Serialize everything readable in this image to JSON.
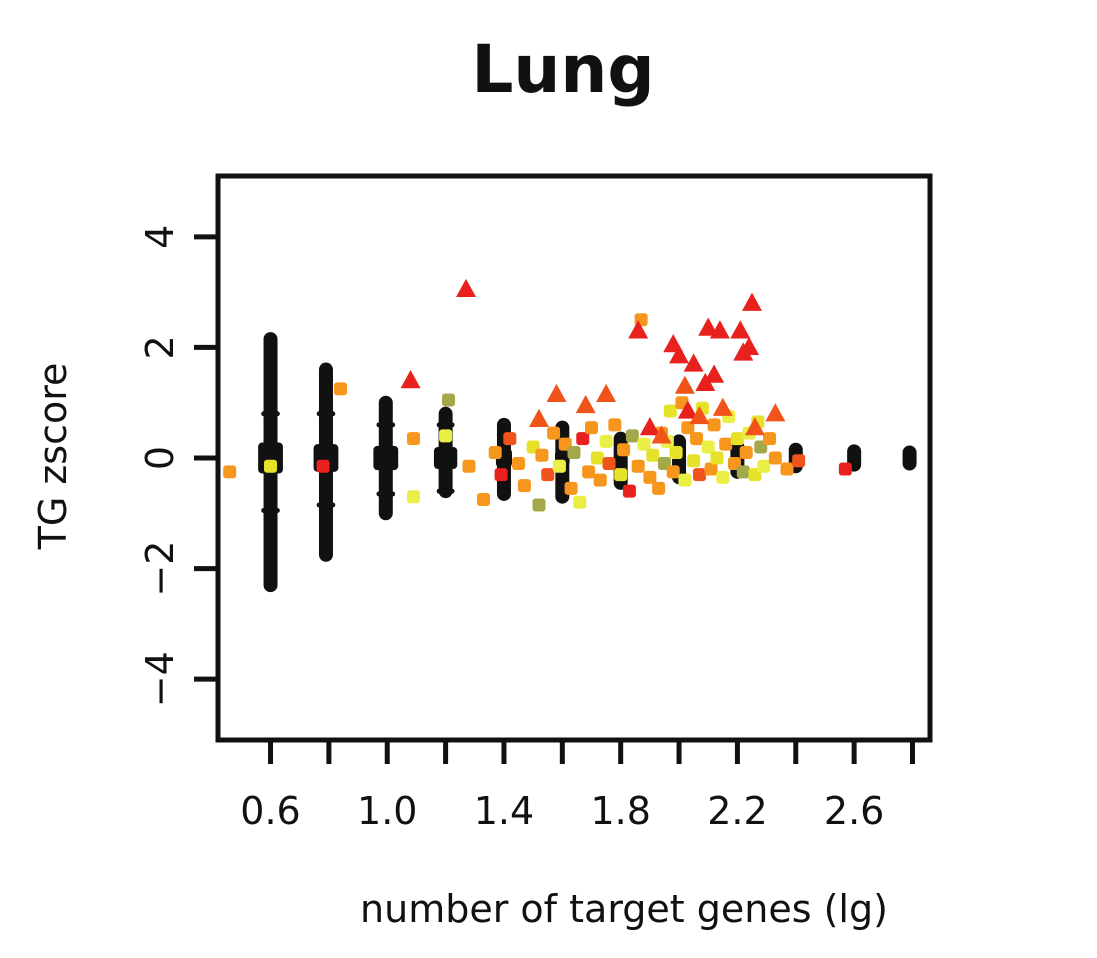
{
  "chart_data": {
    "type": "scatter",
    "title": "Lung",
    "xlabel": "number of target genes (lg)",
    "ylabel": "TG zscore",
    "xlim": [
      0.42,
      2.86
    ],
    "ylim": [
      -5.1,
      5.1
    ],
    "x_ticks": [
      0.6,
      1.0,
      1.4,
      1.8,
      2.2,
      2.6
    ],
    "x_tick_labels": [
      "0.6",
      "1.0",
      "1.4",
      "1.8",
      "2.2",
      "2.6"
    ],
    "x_minor_ticks": [
      0.6,
      0.8,
      1.0,
      1.2,
      1.4,
      1.6,
      1.8,
      2.0,
      2.2,
      2.4,
      2.6,
      2.8
    ],
    "y_ticks": [
      -4,
      -2,
      0,
      2,
      4
    ],
    "y_tick_labels": [
      "−4",
      "−2",
      "0",
      "2",
      "4"
    ],
    "grid": false,
    "legend": "none",
    "colors": {
      "null_distribution": "#111111",
      "red": "#e8211e",
      "orange_red": "#f0541a",
      "orange": "#f7961c",
      "yellow": "#e6e22a",
      "light_yellow": "#e9ef45",
      "olive": "#a3a94a"
    },
    "null_columns": [
      {
        "x": 0.6,
        "bar_width": 0.085,
        "main_band": [
          -0.28,
          0.28
        ],
        "whisker_low": -2.3,
        "whisker_high": 2.15,
        "inner_low": -0.95,
        "inner_high": 0.8
      },
      {
        "x": 0.79,
        "bar_width": 0.085,
        "main_band": [
          -0.25,
          0.25
        ],
        "whisker_low": -1.75,
        "whisker_high": 1.6,
        "inner_low": -0.85,
        "inner_high": 0.8
      },
      {
        "x": 0.995,
        "bar_width": 0.085,
        "main_band": [
          -0.22,
          0.22
        ],
        "whisker_low": -1.0,
        "whisker_high": 1.0,
        "inner_low": -0.65,
        "inner_high": 0.6
      },
      {
        "x": 1.2,
        "bar_width": 0.08,
        "main_band": [
          -0.2,
          0.2
        ],
        "whisker_low": -0.6,
        "whisker_high": 0.8,
        "inner_low": -0.6,
        "inner_high": 0.6
      },
      {
        "x": 1.4,
        "bar_width": 0.055,
        "main_band": [
          -0.17,
          0.17
        ],
        "whisker_low": -0.65,
        "whisker_high": 0.6,
        "inner_low": -0.4,
        "inner_high": 0.4
      },
      {
        "x": 1.6,
        "bar_width": 0.05,
        "main_band": [
          -0.14,
          0.14
        ],
        "whisker_low": -0.7,
        "whisker_high": 0.55,
        "inner_low": -0.35,
        "inner_high": 0.35
      },
      {
        "x": 1.8,
        "bar_width": 0.045,
        "main_band": [
          -0.12,
          0.12
        ],
        "whisker_low": -0.45,
        "whisker_high": 0.35,
        "inner_low": -0.3,
        "inner_high": 0.3
      },
      {
        "x": 2.0,
        "bar_width": 0.045,
        "main_band": [
          -0.1,
          0.1
        ],
        "whisker_low": -0.35,
        "whisker_high": 0.3,
        "inner_low": -0.25,
        "inner_high": 0.25
      },
      {
        "x": 2.2,
        "bar_width": 0.045,
        "main_band": [
          -0.09,
          0.09
        ],
        "whisker_low": -0.25,
        "whisker_high": 0.2,
        "inner_low": -0.2,
        "inner_high": 0.2
      },
      {
        "x": 2.4,
        "bar_width": 0.045,
        "main_band": [
          -0.07,
          0.07
        ],
        "whisker_low": -0.15,
        "whisker_high": 0.15,
        "inner_low": -0.12,
        "inner_high": 0.12
      },
      {
        "x": 2.6,
        "bar_width": 0.045,
        "main_band": [
          -0.06,
          0.06
        ],
        "whisker_low": -0.12,
        "whisker_high": 0.12,
        "inner_low": -0.1,
        "inner_high": 0.1
      },
      {
        "x": 2.79,
        "bar_width": 0.045,
        "main_band": [
          -0.05,
          0.05
        ],
        "whisker_low": -0.1,
        "whisker_high": 0.1,
        "inner_low": -0.08,
        "inner_high": 0.08
      }
    ],
    "triangles": [
      {
        "x": 1.08,
        "y": 1.4,
        "color": "red"
      },
      {
        "x": 1.27,
        "y": 3.05,
        "color": "red"
      },
      {
        "x": 1.52,
        "y": 0.7,
        "color": "orange_red"
      },
      {
        "x": 1.58,
        "y": 1.15,
        "color": "orange_red"
      },
      {
        "x": 1.68,
        "y": 0.95,
        "color": "orange_red"
      },
      {
        "x": 1.75,
        "y": 1.15,
        "color": "orange_red"
      },
      {
        "x": 1.86,
        "y": 2.3,
        "color": "red"
      },
      {
        "x": 1.9,
        "y": 0.55,
        "color": "red"
      },
      {
        "x": 1.94,
        "y": 0.4,
        "color": "orange_red"
      },
      {
        "x": 1.98,
        "y": 2.05,
        "color": "red"
      },
      {
        "x": 2.0,
        "y": 1.85,
        "color": "red"
      },
      {
        "x": 2.02,
        "y": 1.3,
        "color": "orange_red"
      },
      {
        "x": 2.03,
        "y": 0.85,
        "color": "red"
      },
      {
        "x": 2.05,
        "y": 1.7,
        "color": "red"
      },
      {
        "x": 2.07,
        "y": 0.75,
        "color": "orange_red"
      },
      {
        "x": 2.09,
        "y": 1.35,
        "color": "red"
      },
      {
        "x": 2.1,
        "y": 2.35,
        "color": "red"
      },
      {
        "x": 2.12,
        "y": 1.5,
        "color": "red"
      },
      {
        "x": 2.14,
        "y": 2.3,
        "color": "red"
      },
      {
        "x": 2.15,
        "y": 0.9,
        "color": "orange_red"
      },
      {
        "x": 2.21,
        "y": 2.3,
        "color": "red"
      },
      {
        "x": 2.22,
        "y": 1.9,
        "color": "red"
      },
      {
        "x": 2.24,
        "y": 2.0,
        "color": "red"
      },
      {
        "x": 2.25,
        "y": 2.8,
        "color": "red"
      },
      {
        "x": 2.26,
        "y": 0.55,
        "color": "orange_red"
      },
      {
        "x": 2.33,
        "y": 0.8,
        "color": "orange_red"
      }
    ],
    "squares": [
      {
        "x": 0.46,
        "y": -0.25,
        "color": "orange"
      },
      {
        "x": 0.6,
        "y": -0.15,
        "color": "yellow"
      },
      {
        "x": 0.78,
        "y": -0.15,
        "color": "red"
      },
      {
        "x": 0.84,
        "y": 1.25,
        "color": "orange"
      },
      {
        "x": 1.09,
        "y": 0.35,
        "color": "orange"
      },
      {
        "x": 1.09,
        "y": -0.7,
        "color": "light_yellow"
      },
      {
        "x": 1.2,
        "y": 0.4,
        "color": "light_yellow"
      },
      {
        "x": 1.21,
        "y": 1.05,
        "color": "olive"
      },
      {
        "x": 1.28,
        "y": -0.15,
        "color": "orange"
      },
      {
        "x": 1.33,
        "y": -0.75,
        "color": "orange"
      },
      {
        "x": 1.37,
        "y": 0.1,
        "color": "orange"
      },
      {
        "x": 1.39,
        "y": -0.3,
        "color": "red"
      },
      {
        "x": 1.42,
        "y": 0.35,
        "color": "orange_red"
      },
      {
        "x": 1.45,
        "y": -0.1,
        "color": "orange"
      },
      {
        "x": 1.47,
        "y": -0.5,
        "color": "orange"
      },
      {
        "x": 1.5,
        "y": 0.2,
        "color": "yellow"
      },
      {
        "x": 1.52,
        "y": -0.85,
        "color": "olive"
      },
      {
        "x": 1.53,
        "y": 0.05,
        "color": "orange"
      },
      {
        "x": 1.55,
        "y": -0.3,
        "color": "orange_red"
      },
      {
        "x": 1.57,
        "y": 0.45,
        "color": "orange"
      },
      {
        "x": 1.59,
        "y": -0.15,
        "color": "light_yellow"
      },
      {
        "x": 1.61,
        "y": 0.25,
        "color": "orange"
      },
      {
        "x": 1.63,
        "y": -0.55,
        "color": "orange"
      },
      {
        "x": 1.64,
        "y": 0.1,
        "color": "olive"
      },
      {
        "x": 1.66,
        "y": -0.8,
        "color": "light_yellow"
      },
      {
        "x": 1.67,
        "y": 0.35,
        "color": "red"
      },
      {
        "x": 1.69,
        "y": -0.25,
        "color": "orange"
      },
      {
        "x": 1.7,
        "y": 0.55,
        "color": "orange"
      },
      {
        "x": 1.72,
        "y": 0.0,
        "color": "yellow"
      },
      {
        "x": 1.73,
        "y": -0.4,
        "color": "orange"
      },
      {
        "x": 1.75,
        "y": 0.3,
        "color": "light_yellow"
      },
      {
        "x": 1.76,
        "y": -0.1,
        "color": "orange_red"
      },
      {
        "x": 1.78,
        "y": 0.6,
        "color": "orange"
      },
      {
        "x": 1.8,
        "y": -0.3,
        "color": "yellow"
      },
      {
        "x": 1.81,
        "y": 0.15,
        "color": "orange"
      },
      {
        "x": 1.83,
        "y": -0.6,
        "color": "red"
      },
      {
        "x": 1.84,
        "y": 0.4,
        "color": "olive"
      },
      {
        "x": 1.86,
        "y": -0.15,
        "color": "orange"
      },
      {
        "x": 1.87,
        "y": 2.5,
        "color": "orange"
      },
      {
        "x": 1.88,
        "y": 0.25,
        "color": "light_yellow"
      },
      {
        "x": 1.9,
        "y": -0.35,
        "color": "orange"
      },
      {
        "x": 1.91,
        "y": 0.05,
        "color": "yellow"
      },
      {
        "x": 1.93,
        "y": -0.55,
        "color": "orange"
      },
      {
        "x": 1.94,
        "y": 0.45,
        "color": "orange"
      },
      {
        "x": 1.95,
        "y": -0.1,
        "color": "olive"
      },
      {
        "x": 1.96,
        "y": 0.3,
        "color": "light_yellow"
      },
      {
        "x": 1.97,
        "y": 0.85,
        "color": "yellow"
      },
      {
        "x": 1.98,
        "y": -0.25,
        "color": "orange"
      },
      {
        "x": 1.99,
        "y": 0.1,
        "color": "yellow"
      },
      {
        "x": 2.01,
        "y": 1.0,
        "color": "orange"
      },
      {
        "x": 2.02,
        "y": -0.4,
        "color": "light_yellow"
      },
      {
        "x": 2.03,
        "y": 0.55,
        "color": "orange"
      },
      {
        "x": 2.05,
        "y": -0.05,
        "color": "yellow"
      },
      {
        "x": 2.06,
        "y": 0.35,
        "color": "orange"
      },
      {
        "x": 2.07,
        "y": -0.3,
        "color": "orange_red"
      },
      {
        "x": 2.08,
        "y": 0.9,
        "color": "yellow"
      },
      {
        "x": 2.1,
        "y": 0.2,
        "color": "light_yellow"
      },
      {
        "x": 2.11,
        "y": -0.2,
        "color": "orange"
      },
      {
        "x": 2.12,
        "y": 0.6,
        "color": "orange"
      },
      {
        "x": 2.13,
        "y": 0.0,
        "color": "yellow"
      },
      {
        "x": 2.15,
        "y": -0.35,
        "color": "light_yellow"
      },
      {
        "x": 2.16,
        "y": 0.25,
        "color": "orange"
      },
      {
        "x": 2.17,
        "y": 0.75,
        "color": "light_yellow"
      },
      {
        "x": 2.19,
        "y": -0.1,
        "color": "orange"
      },
      {
        "x": 2.2,
        "y": 0.35,
        "color": "yellow"
      },
      {
        "x": 2.22,
        "y": -0.25,
        "color": "olive"
      },
      {
        "x": 2.23,
        "y": 0.1,
        "color": "orange"
      },
      {
        "x": 2.24,
        "y": 0.45,
        "color": "light_yellow"
      },
      {
        "x": 2.26,
        "y": -0.3,
        "color": "yellow"
      },
      {
        "x": 2.27,
        "y": 0.65,
        "color": "yellow"
      },
      {
        "x": 2.28,
        "y": 0.2,
        "color": "olive"
      },
      {
        "x": 2.29,
        "y": -0.15,
        "color": "light_yellow"
      },
      {
        "x": 2.31,
        "y": 0.35,
        "color": "orange"
      },
      {
        "x": 2.33,
        "y": 0.0,
        "color": "orange"
      },
      {
        "x": 2.37,
        "y": -0.2,
        "color": "orange"
      },
      {
        "x": 2.41,
        "y": -0.05,
        "color": "orange_red"
      },
      {
        "x": 2.57,
        "y": -0.2,
        "color": "red"
      }
    ]
  }
}
